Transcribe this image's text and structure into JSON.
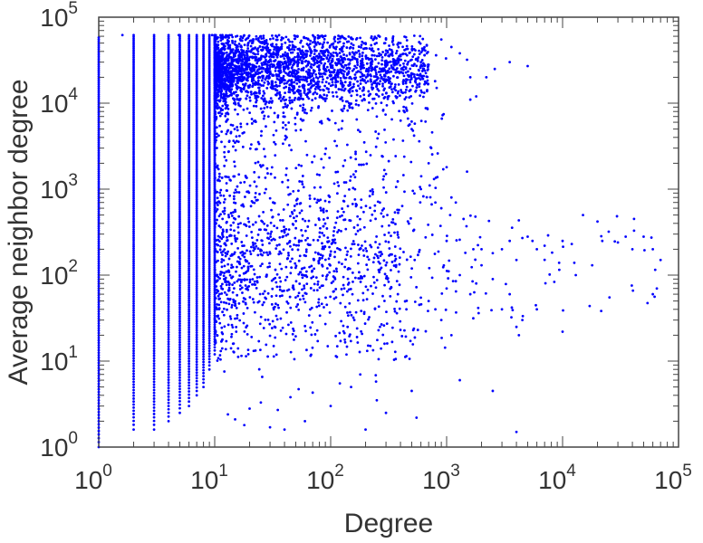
{
  "chart_data": {
    "type": "scatter",
    "title": "",
    "xlabel": "Degree",
    "ylabel": "Average neighbor degree",
    "xscale": "log",
    "yscale": "log",
    "xlim": [
      1,
      100000
    ],
    "ylim": [
      1,
      100000
    ],
    "grid": false,
    "legend": "none",
    "marker_color": "#0000ff",
    "x_ticks": [
      {
        "base": "10",
        "exp": "0"
      },
      {
        "base": "10",
        "exp": "1"
      },
      {
        "base": "10",
        "exp": "2"
      },
      {
        "base": "10",
        "exp": "3"
      },
      {
        "base": "10",
        "exp": "4"
      },
      {
        "base": "10",
        "exp": "5"
      }
    ],
    "y_ticks": [
      {
        "base": "10",
        "exp": "0"
      },
      {
        "base": "10",
        "exp": "1"
      },
      {
        "base": "10",
        "exp": "2"
      },
      {
        "base": "10",
        "exp": "3"
      },
      {
        "base": "10",
        "exp": "4"
      },
      {
        "base": "10",
        "exp": "5"
      }
    ],
    "columns": [
      {
        "x": 1,
        "y_range": [
          1,
          58000
        ]
      },
      {
        "x": 2,
        "y_range": [
          1.6,
          62000
        ]
      },
      {
        "x": 3,
        "y_range": [
          1.6,
          62000
        ]
      },
      {
        "x": 4,
        "y_range": [
          2,
          62000
        ]
      },
      {
        "x": 5,
        "y_range": [
          2.5,
          62000
        ]
      },
      {
        "x": 6,
        "y_range": [
          3,
          62000
        ]
      },
      {
        "x": 7,
        "y_range": [
          4,
          62000
        ]
      },
      {
        "x": 8,
        "y_range": [
          5,
          62000
        ]
      },
      {
        "x": 9,
        "y_range": [
          8,
          62000
        ]
      },
      {
        "x": 10,
        "y_range": [
          12,
          62000
        ]
      }
    ],
    "clusters": [
      {
        "name": "dense-high",
        "x_range": [
          10,
          700
        ],
        "y_center": 25000,
        "y_spread_log": 0.22,
        "count": 2400
      },
      {
        "name": "mid",
        "x_range": [
          10,
          400
        ],
        "y_center": 150,
        "y_spread_log": 0.5,
        "count": 700
      },
      {
        "name": "wide-spread",
        "x_range": [
          10,
          1000
        ],
        "y_range": [
          10,
          40000
        ],
        "count": 900
      },
      {
        "name": "right-tail",
        "x_range": [
          1000,
          70000
        ],
        "y_range": [
          30,
          500
        ],
        "count": 60
      }
    ],
    "points": [
      [
        1.6,
        62000
      ],
      [
        4.9,
        62000
      ],
      [
        9.5,
        62000
      ],
      [
        14,
        62000
      ],
      [
        25,
        60000
      ],
      [
        50,
        60000
      ],
      [
        80,
        58000
      ],
      [
        120,
        52000
      ],
      [
        200,
        50000
      ],
      [
        300,
        55000
      ],
      [
        400,
        50000
      ],
      [
        500,
        32000
      ],
      [
        600,
        30000
      ],
      [
        700,
        28000
      ],
      [
        900,
        55000
      ],
      [
        1100,
        45000
      ],
      [
        1300,
        38000
      ],
      [
        1500,
        32000
      ],
      [
        1600,
        20000
      ],
      [
        1800,
        12000
      ],
      [
        2200,
        20000
      ],
      [
        2600,
        25000
      ],
      [
        3500,
        30000
      ],
      [
        5000,
        27000
      ],
      [
        1600,
        11000
      ],
      [
        250,
        7000
      ],
      [
        500,
        5000
      ],
      [
        700,
        2000
      ],
      [
        300,
        1500
      ],
      [
        1000,
        1800
      ],
      [
        1500,
        1600
      ],
      [
        600,
        1000
      ],
      [
        800,
        700
      ],
      [
        900,
        600
      ],
      [
        1000,
        250
      ],
      [
        1100,
        800
      ],
      [
        1200,
        700
      ],
      [
        1400,
        450
      ],
      [
        1700,
        200
      ],
      [
        2000,
        200
      ],
      [
        2500,
        180
      ],
      [
        3000,
        200
      ],
      [
        3500,
        250
      ],
      [
        4000,
        150
      ],
      [
        4500,
        270
      ],
      [
        5000,
        280
      ],
      [
        5500,
        250
      ],
      [
        6000,
        200
      ],
      [
        7000,
        220
      ],
      [
        7500,
        290
      ],
      [
        10000,
        250
      ],
      [
        12000,
        230
      ],
      [
        13000,
        100
      ],
      [
        15000,
        500
      ],
      [
        18000,
        130
      ],
      [
        20000,
        420
      ],
      [
        22000,
        250
      ],
      [
        25000,
        320
      ],
      [
        30000,
        240
      ],
      [
        35000,
        280
      ],
      [
        40000,
        200
      ],
      [
        50000,
        280
      ],
      [
        60000,
        200
      ],
      [
        70000,
        150
      ],
      [
        65000,
        70
      ],
      [
        60000,
        60
      ],
      [
        2000,
        130
      ],
      [
        2500,
        90
      ],
      [
        3000,
        40
      ],
      [
        3500,
        60
      ],
      [
        4000,
        25
      ],
      [
        4200,
        20
      ],
      [
        4500,
        30
      ],
      [
        6000,
        40
      ],
      [
        10000,
        22
      ],
      [
        1000,
        70
      ],
      [
        1200,
        85
      ],
      [
        1300,
        100
      ],
      [
        1600,
        60
      ],
      [
        1800,
        80
      ],
      [
        700,
        50
      ],
      [
        800,
        40
      ],
      [
        900,
        30
      ],
      [
        1100,
        20
      ],
      [
        150,
        5
      ],
      [
        250,
        3.5
      ],
      [
        300,
        2.5
      ],
      [
        500,
        4.5
      ],
      [
        550,
        2.2
      ],
      [
        1300,
        6
      ],
      [
        2500,
        4.5
      ],
      [
        4000,
        1.5
      ],
      [
        200,
        1.6
      ],
      [
        100,
        3
      ],
      [
        60,
        2
      ],
      [
        40,
        1.6
      ],
      [
        30,
        1.7
      ],
      [
        18,
        1.8
      ],
      [
        15,
        2.1
      ],
      [
        13,
        2.4
      ],
      [
        20,
        2.8
      ],
      [
        25,
        3.3
      ],
      [
        35,
        2.7
      ],
      [
        45,
        3.8
      ],
      [
        70,
        4.3
      ],
      [
        120,
        5.5
      ],
      [
        180,
        7
      ],
      [
        220,
        15
      ],
      [
        140,
        25
      ],
      [
        160,
        30
      ],
      [
        450,
        40
      ],
      [
        380,
        60
      ]
    ]
  }
}
